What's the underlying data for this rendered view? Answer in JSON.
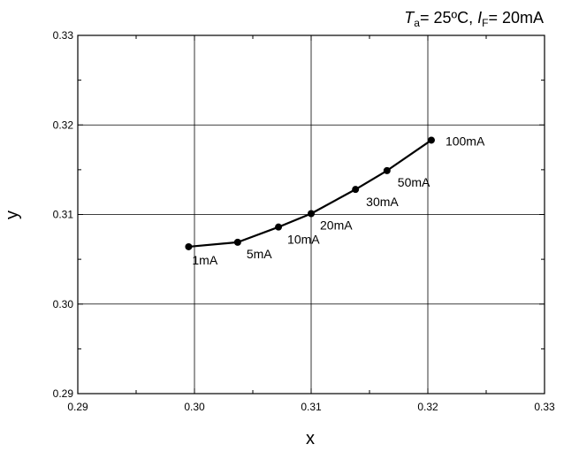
{
  "chart_data": {
    "type": "scatter",
    "title": "",
    "condition": {
      "t_symbol": "T",
      "t_sub": "a",
      "t_value": "= 25ºC, ",
      "i_symbol": "I",
      "i_sub": "F",
      "i_value": "= 20mA"
    },
    "xlabel": "x",
    "ylabel": "y",
    "xlim": [
      0.29,
      0.33
    ],
    "ylim": [
      0.29,
      0.33
    ],
    "xticks": [
      "0.29",
      "0.30",
      "0.31",
      "0.32",
      "0.33"
    ],
    "yticks": [
      "0.29",
      "0.30",
      "0.31",
      "0.32",
      "0.33"
    ],
    "grid": true,
    "series": [
      {
        "x": [
          0.2995,
          0.3037,
          0.3072,
          0.31,
          0.3138,
          0.3165,
          0.3203
        ],
        "y": [
          0.3064,
          0.3069,
          0.3086,
          0.3101,
          0.3128,
          0.3149,
          0.3183
        ],
        "labels": [
          "1mA",
          "5mA",
          "10mA",
          "20mA",
          "30mA",
          "50mA",
          "100mA"
        ]
      }
    ],
    "colors": {
      "line": "#000000",
      "grid": "#000000",
      "frame": "#000000"
    }
  }
}
